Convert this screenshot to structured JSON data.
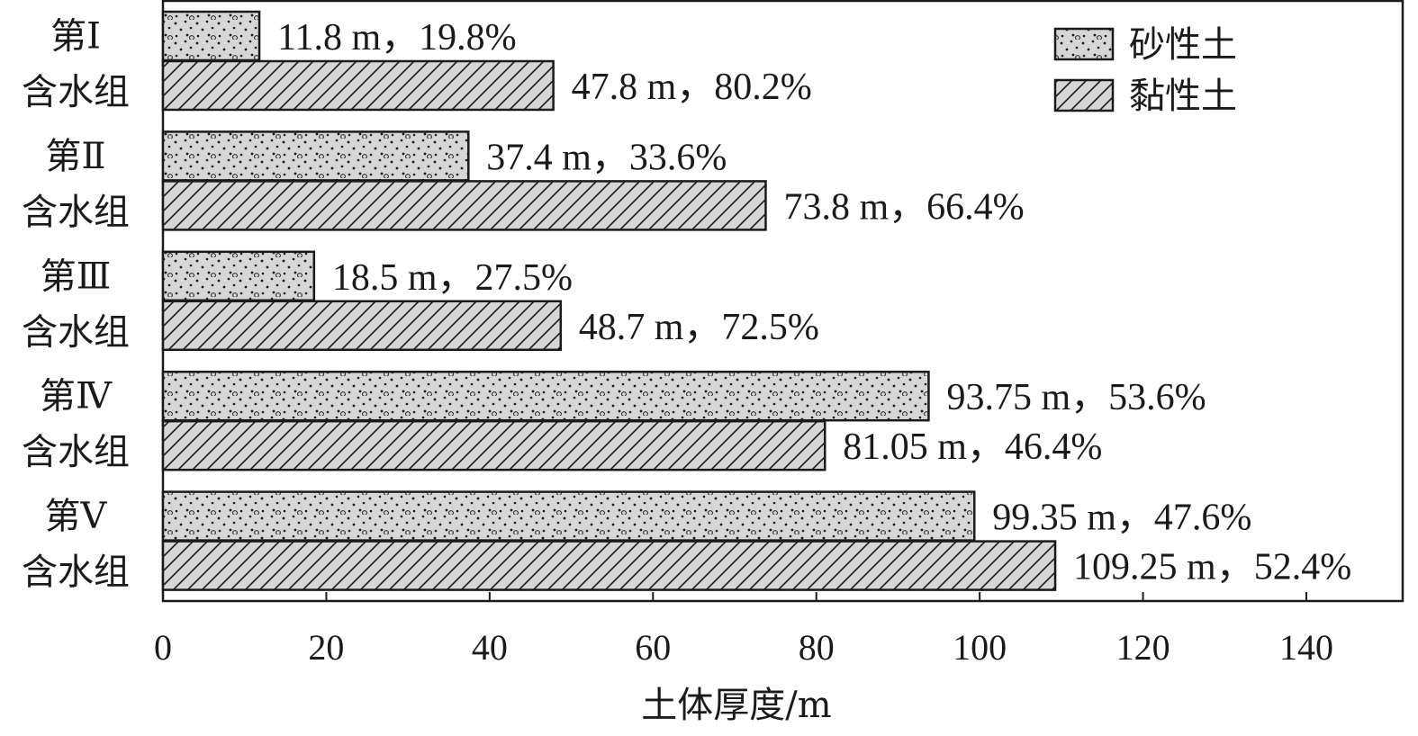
{
  "chart_data": {
    "type": "bar",
    "orientation": "horizontal",
    "categories": [
      [
        "第Ⅰ",
        "含水组"
      ],
      [
        "第Ⅱ",
        "含水组"
      ],
      [
        "第Ⅲ",
        "含水组"
      ],
      [
        "第Ⅳ",
        "含水组"
      ],
      [
        "第Ⅴ",
        "含水组"
      ]
    ],
    "series": [
      {
        "name": "砂性土",
        "pattern": "dots",
        "values": [
          11.8,
          37.4,
          18.5,
          93.75,
          99.35
        ],
        "labels": [
          "11.8 m，19.8%",
          "37.4 m，33.6%",
          "18.5 m，27.5%",
          "93.75 m，53.6%",
          "99.35 m，47.6%"
        ]
      },
      {
        "name": "黏性土",
        "pattern": "hatch",
        "values": [
          47.8,
          73.8,
          48.7,
          81.05,
          109.25
        ],
        "labels": [
          "47.8 m，80.2%",
          "73.8 m，66.4%",
          "48.7 m，72.5%",
          "81.05 m，46.4%",
          "109.25 m，52.4%"
        ]
      }
    ],
    "xlabel": "土体厚度/m",
    "xlim": [
      0,
      152
    ],
    "xticks": [
      0,
      20,
      40,
      60,
      80,
      100,
      120,
      140
    ],
    "grid": false,
    "legend_position": "top-right",
    "colors": {
      "bar_fill": "#d6d6d6",
      "stroke": "#1a1a1a"
    }
  }
}
